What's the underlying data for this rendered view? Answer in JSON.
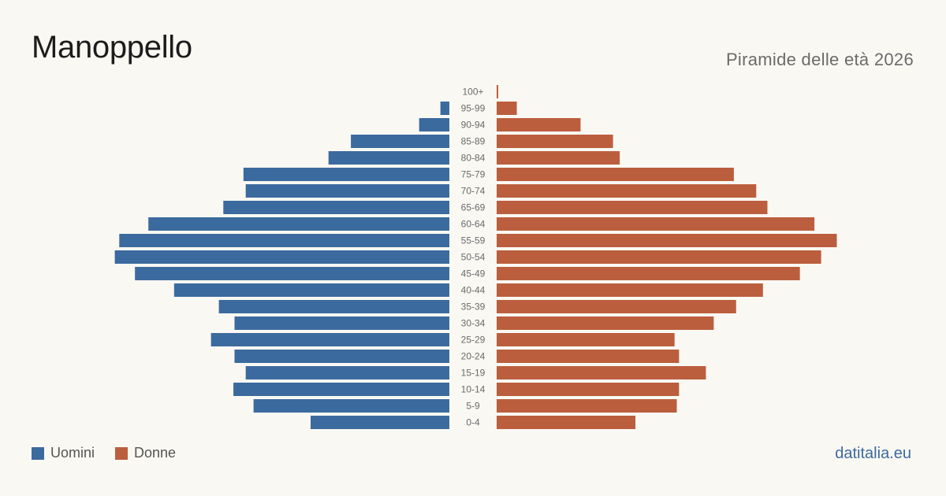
{
  "title": "Manoppello",
  "subtitle": "Piramide delle età 2026",
  "brand": "datitalia.eu",
  "colors": {
    "men": "#3b6a9e",
    "women": "#bb5e3d"
  },
  "legend": {
    "men_label": "Uomini",
    "women_label": "Donne"
  },
  "chart_data": {
    "type": "bar",
    "orientation": "horizontal-pyramid",
    "categories": [
      "100+",
      "95-99",
      "90-94",
      "85-89",
      "80-84",
      "75-79",
      "70-74",
      "65-69",
      "60-64",
      "55-59",
      "50-54",
      "45-49",
      "40-44",
      "35-39",
      "30-34",
      "25-29",
      "20-24",
      "15-19",
      "10-14",
      "5-9",
      "0-4"
    ],
    "series": [
      {
        "name": "Uomini",
        "values": [
          0,
          8,
          27,
          88,
          108,
          184,
          182,
          202,
          269,
          295,
          299,
          281,
          246,
          206,
          192,
          213,
          192,
          182,
          193,
          175,
          124
        ]
      },
      {
        "name": "Donne",
        "values": [
          1,
          18,
          75,
          104,
          110,
          212,
          232,
          242,
          284,
          304,
          290,
          271,
          238,
          214,
          194,
          159,
          163,
          187,
          163,
          161,
          124
        ]
      }
    ],
    "xlim": [
      0,
      310
    ],
    "legend_position": "bottom-left",
    "grid": false
  }
}
